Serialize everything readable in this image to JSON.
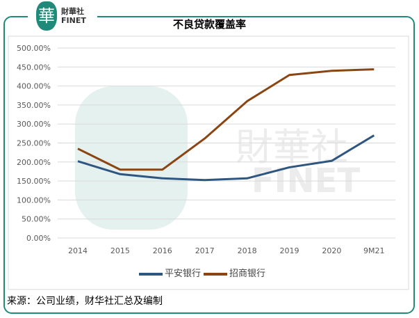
{
  "logo": {
    "mark": "華",
    "name_cn": "財華社",
    "name_en": "FINET"
  },
  "source": "来源：公司业绩，财华社汇总及编制",
  "chart_data": {
    "type": "line",
    "title": "不良贷款覆盖率",
    "categories": [
      "2014",
      "2015",
      "2016",
      "2017",
      "2018",
      "2019",
      "2020",
      "9M21"
    ],
    "series": [
      {
        "name": "平安银行",
        "color": "#2e5680",
        "values": [
          202,
          168,
          157,
          152.5,
          157,
          186,
          203,
          270
        ]
      },
      {
        "name": "招商银行",
        "color": "#8b4513",
        "values": [
          235,
          180,
          180,
          262,
          360,
          429,
          440,
          444
        ]
      }
    ],
    "yticks": [
      "0.00%",
      "50.00%",
      "100.00%",
      "150.00%",
      "200.00%",
      "250.00%",
      "300.00%",
      "350.00%",
      "400.00%",
      "450.00%",
      "500.00%"
    ],
    "ylim": [
      0,
      500
    ],
    "grid": true,
    "legend": "bottom",
    "watermark": "財華社 FINET"
  }
}
